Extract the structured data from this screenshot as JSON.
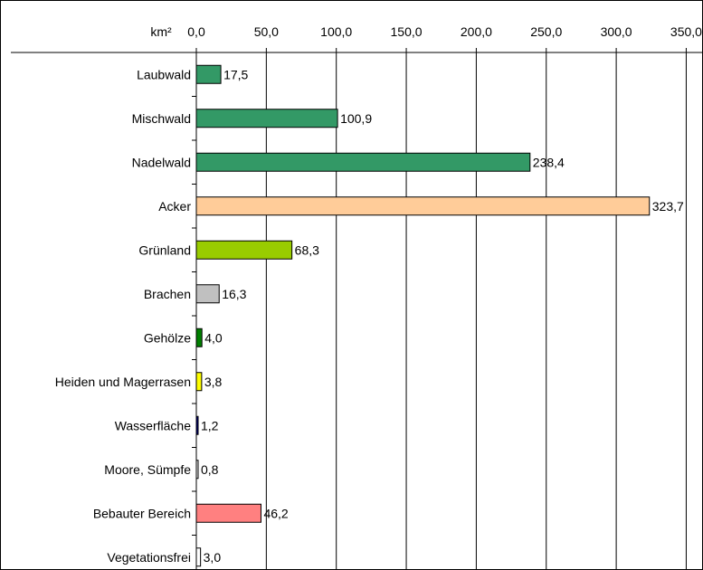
{
  "chart_data": {
    "type": "bar",
    "orientation": "horizontal",
    "unit_label": "km²",
    "title": "",
    "xlabel": "",
    "ylabel": "",
    "xlim": [
      0,
      350
    ],
    "x_ticks": [
      "0,0",
      "50,0",
      "100,0",
      "150,0",
      "200,0",
      "250,0",
      "300,0",
      "350,0"
    ],
    "x_axis_position": "top",
    "grid": "vertical",
    "categories": [
      "Laubwald",
      "Mischwald",
      "Nadelwald",
      "Acker",
      "Grünland",
      "Brachen",
      "Gehölze",
      "Heiden und Magerrasen",
      "Wasserfläche",
      "Moore, Sümpfe",
      "Bebauter Bereich",
      "Vegetationsfrei"
    ],
    "values": [
      17.5,
      100.9,
      238.4,
      323.7,
      68.3,
      16.3,
      4.0,
      3.8,
      1.2,
      0.8,
      46.2,
      3.0
    ],
    "value_labels": [
      "17,5",
      "100,9",
      "238,4",
      "323,7",
      "68,3",
      "16,3",
      "4,0",
      "3,8",
      "1,2",
      "0,8",
      "46,2",
      "3,0"
    ],
    "colors": [
      "#339966",
      "#339966",
      "#339966",
      "#FFCC99",
      "#99CC00",
      "#C0C0C0",
      "#008000",
      "#FFFF00",
      "#000080",
      "#FFFFFF",
      "#FF8080",
      "#FFFFFF"
    ]
  }
}
